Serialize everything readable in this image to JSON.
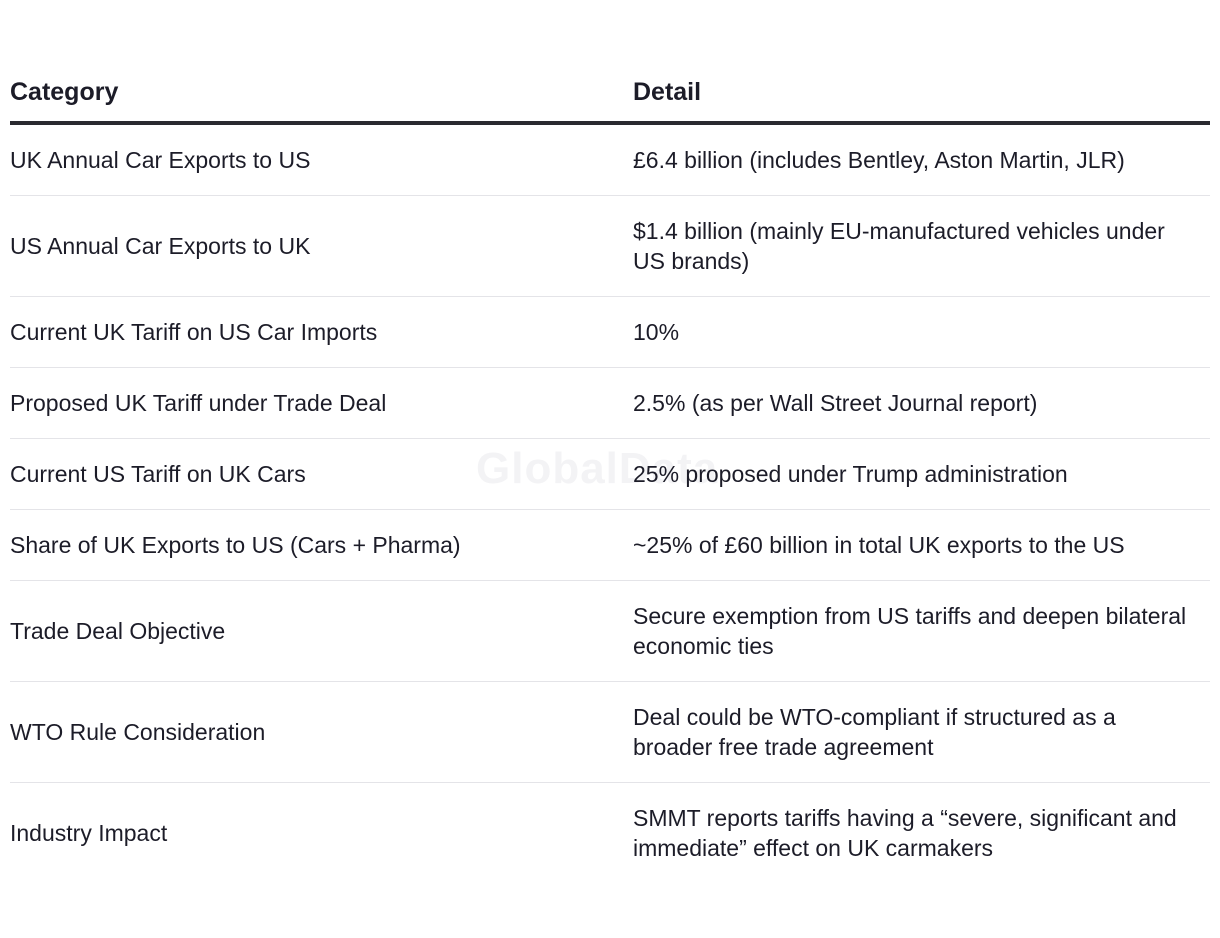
{
  "watermark": "GlobalData",
  "table": {
    "headers": [
      "Category",
      "Detail"
    ],
    "rows": [
      [
        "UK Annual Car Exports to US",
        "£6.4 billion (includes Bentley, Aston Martin, JLR)"
      ],
      [
        "US Annual Car Exports to UK",
        "$1.4 billion (mainly EU-manufactured vehicles under US brands)"
      ],
      [
        "Current UK Tariff on US Car Imports",
        "10%"
      ],
      [
        "Proposed UK Tariff under Trade Deal",
        "2.5% (as per Wall Street Journal report)"
      ],
      [
        "Current US Tariff on UK Cars",
        "25% proposed under Trump administration"
      ],
      [
        "Share of UK Exports to US (Cars + Pharma)",
        "~25% of £60 billion in total UK exports to the US"
      ],
      [
        "Trade Deal Objective",
        "Secure exemption from US tariffs and deepen bilateral economic ties"
      ],
      [
        "WTO Rule Consideration",
        "Deal could be WTO-compliant if structured as a broader free trade agreement"
      ],
      [
        "Industry Impact",
        "SMMT reports tariffs having a “severe, significant and immediate” effect on UK carmakers"
      ]
    ]
  },
  "colors": {
    "text": "#1c1c28",
    "header_rule": "#2a2a30",
    "row_rule": "#e4e4e8",
    "watermark": "#f3f3f5"
  }
}
